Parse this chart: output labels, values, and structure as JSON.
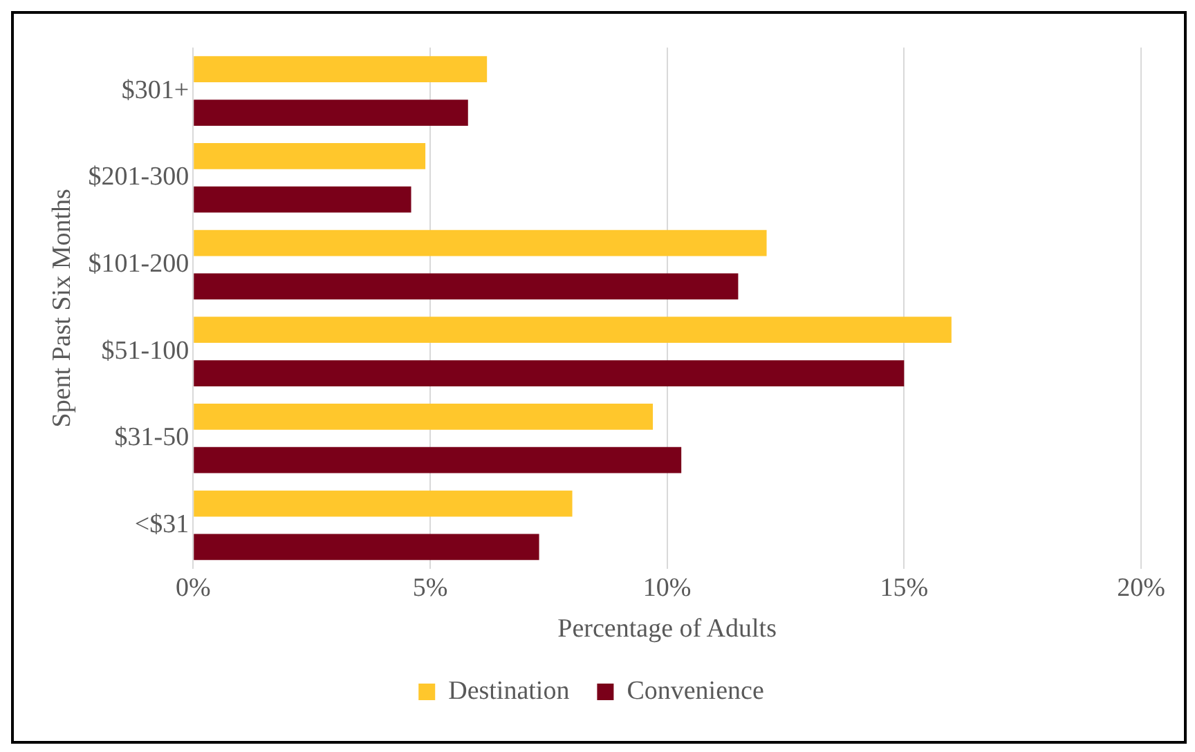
{
  "chart_data": {
    "type": "bar",
    "orientation": "horizontal",
    "xlabel": "Percentage of Adults",
    "ylabel": "Spent Past Six Months",
    "categories": [
      "$301+",
      "$201-300",
      "$101-200",
      "$51-100",
      "$31-50",
      "<$31"
    ],
    "series": [
      {
        "name": "Destination",
        "color": "#ffc72c",
        "values": [
          6.2,
          4.9,
          12.1,
          16.0,
          9.7,
          8.0
        ]
      },
      {
        "name": "Convenience",
        "color": "#7a0019",
        "values": [
          5.8,
          4.6,
          11.5,
          15.0,
          10.3,
          7.3
        ]
      }
    ],
    "xlim": [
      0,
      20
    ],
    "xticks": [
      {
        "value": 0,
        "label": "0%"
      },
      {
        "value": 5,
        "label": "5%"
      },
      {
        "value": 10,
        "label": "10%"
      },
      {
        "value": 15,
        "label": "15%"
      },
      {
        "value": 20,
        "label": "20%"
      }
    ],
    "grid": "x",
    "legend": "bottom"
  }
}
